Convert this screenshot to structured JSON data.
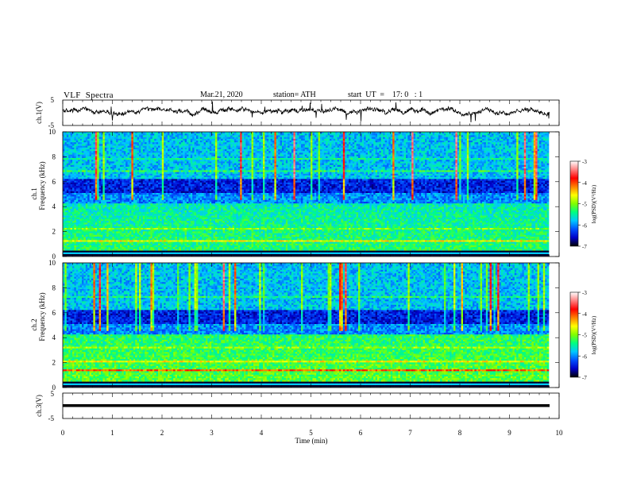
{
  "header": {
    "title": "VLF  Spectra",
    "date": "Mar.21, 2020",
    "station": "station= ATH",
    "start_ut": "start  UT  =    17: 0   : 1"
  },
  "chart_data": [
    {
      "type": "line",
      "panel": "ch1-waveform",
      "ylabel": "ch.1(V)",
      "ylim": [
        -5,
        5
      ],
      "y_ticks": [
        "5",
        "-5"
      ],
      "xlim": [
        0,
        10
      ],
      "x_data_end_min": 9.8,
      "color": "#000000"
    },
    {
      "type": "heatmap",
      "panel": "ch1-spectrogram",
      "ylabel_top": "ch.1",
      "ylabel": "Frequency  (kHz)",
      "ylim": [
        0,
        10
      ],
      "y_ticks": [
        "0",
        "2",
        "4",
        "6",
        "8",
        "10"
      ],
      "xlim": [
        0,
        10
      ],
      "x_data_end_min": 9.8,
      "colorbar": {
        "label": "log(PSD)(V²/Hz)",
        "range": [
          -7,
          -3
        ],
        "ticks": [
          "-3",
          "-4",
          "-5",
          "-6",
          "-7"
        ],
        "colors": [
          "#000000",
          "#0000c8",
          "#0050ff",
          "#00c8ff",
          "#00ff80",
          "#80ff00",
          "#ffff00",
          "#ff8000",
          "#ff0000",
          "#ff8080",
          "#ffffff"
        ]
      }
    },
    {
      "type": "heatmap",
      "panel": "ch2-spectrogram",
      "ylabel_top": "ch.2",
      "ylabel": "Frequency  (kHz)",
      "ylim": [
        0,
        10
      ],
      "y_ticks": [
        "0",
        "2",
        "4",
        "6",
        "8",
        "10"
      ],
      "xlim": [
        0,
        10
      ],
      "x_data_end_min": 9.8,
      "colorbar": {
        "label": "log(PSD)(V²/Hz)",
        "range": [
          -7,
          -3
        ],
        "ticks": [
          "-3",
          "-4",
          "-5",
          "-6",
          "-7"
        ],
        "colors": [
          "#000000",
          "#0000c8",
          "#0050ff",
          "#00c8ff",
          "#00ff80",
          "#80ff00",
          "#ffff00",
          "#ff8000",
          "#ff0000",
          "#ff8080",
          "#ffffff"
        ]
      }
    },
    {
      "type": "line",
      "panel": "ch3-waveform",
      "ylabel": "ch.3(V)",
      "ylim": [
        -5,
        5
      ],
      "y_ticks": [
        "5",
        "-5"
      ],
      "xlim": [
        0,
        10
      ],
      "x_data_end_min": 9.8,
      "flat_value": -1.5,
      "color": "#000000"
    }
  ],
  "x_axis": {
    "label": "Time  (min)",
    "ticks": [
      "0",
      "1",
      "2",
      "3",
      "4",
      "5",
      "6",
      "7",
      "8",
      "9",
      "10"
    ]
  }
}
